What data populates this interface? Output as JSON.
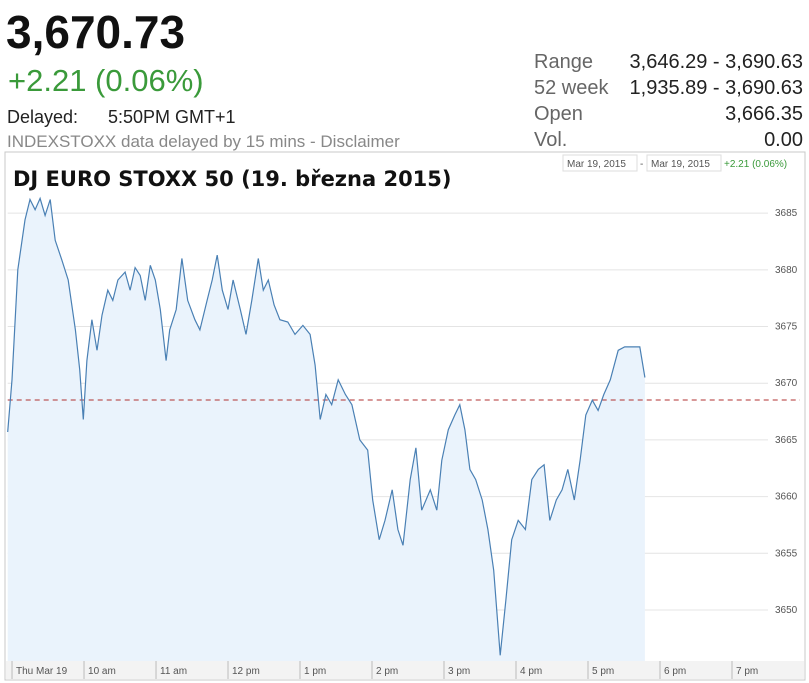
{
  "header": {
    "price": "3,670.73",
    "change": "+2.21 (0.06%)",
    "delayed_label": "Delayed:",
    "delayed_time": "5:50PM GMT+1",
    "note": "INDEXSTOXX data delayed by 15 mins - Disclaimer"
  },
  "stats": [
    [
      "Range",
      "3,646.29 - 3,690.63"
    ],
    [
      "52 week",
      "1,935.89 - 3,690.63"
    ],
    [
      "Open",
      "3,666.35"
    ],
    [
      "Vol.",
      "0.00"
    ]
  ],
  "chart_data": {
    "type": "line",
    "title": "DJ EURO STOXX 50 (19. března 2015)",
    "range_start": "Mar 19, 2015",
    "range_separator": "-",
    "range_end": "Mar 19, 2015",
    "range_change": "+2.21 (0.06%)",
    "x": [
      8.94,
      9.0,
      9.08,
      9.18,
      9.25,
      9.32,
      9.39,
      9.46,
      9.53,
      9.6,
      9.69,
      9.78,
      9.88,
      9.94,
      9.99,
      10.04,
      10.11,
      10.18,
      10.25,
      10.33,
      10.4,
      10.47,
      10.57,
      10.64,
      10.71,
      10.78,
      10.85,
      10.92,
      10.99,
      11.06,
      11.14,
      11.19,
      11.28,
      11.36,
      11.44,
      11.54,
      11.61,
      11.71,
      11.78,
      11.85,
      11.92,
      12.0,
      12.07,
      12.17,
      12.25,
      12.33,
      12.42,
      12.49,
      12.56,
      12.64,
      12.72,
      12.83,
      12.93,
      13.04,
      13.14,
      13.21,
      13.28,
      13.36,
      13.44,
      13.53,
      13.63,
      13.72,
      13.83,
      13.94,
      14.01,
      14.1,
      14.18,
      14.28,
      14.36,
      14.43,
      14.53,
      14.61,
      14.69,
      14.81,
      14.9,
      14.97,
      15.06,
      15.15,
      15.22,
      15.29,
      15.36,
      15.44,
      15.53,
      15.61,
      15.69,
      15.78,
      15.86,
      15.94,
      16.03,
      16.13,
      16.22,
      16.31,
      16.39,
      16.47,
      16.56,
      16.64,
      16.72,
      16.81,
      16.89,
      16.97,
      17.06,
      17.14,
      17.22,
      17.31,
      17.42,
      17.51,
      17.72,
      17.79
    ],
    "values": [
      3665.7,
      3670.3,
      3680.0,
      3684.4,
      3686.2,
      3685.3,
      3686.3,
      3684.8,
      3686.2,
      3682.6,
      3680.9,
      3679.1,
      3674.7,
      3671.2,
      3666.8,
      3672.0,
      3675.6,
      3672.9,
      3676.0,
      3678.2,
      3677.3,
      3679.1,
      3679.8,
      3678.2,
      3680.2,
      3679.5,
      3677.3,
      3680.4,
      3679.1,
      3676.5,
      3672.0,
      3674.7,
      3676.5,
      3681.0,
      3677.3,
      3675.6,
      3674.7,
      3677.3,
      3679.1,
      3681.3,
      3678.2,
      3676.5,
      3679.1,
      3676.5,
      3674.3,
      3677.3,
      3681.0,
      3678.2,
      3679.1,
      3676.9,
      3675.6,
      3675.4,
      3674.3,
      3675.1,
      3674.3,
      3671.6,
      3666.8,
      3669.0,
      3668.1,
      3670.3,
      3669.0,
      3668.1,
      3665.0,
      3664.1,
      3659.7,
      3656.2,
      3657.9,
      3660.6,
      3657.1,
      3655.7,
      3661.5,
      3664.3,
      3658.8,
      3660.6,
      3658.8,
      3663.2,
      3665.9,
      3667.2,
      3668.1,
      3665.9,
      3662.4,
      3661.5,
      3659.7,
      3657.1,
      3653.5,
      3646.0,
      3650.9,
      3656.2,
      3657.9,
      3657.1,
      3661.5,
      3662.4,
      3662.8,
      3657.9,
      3659.7,
      3660.6,
      3662.4,
      3659.7,
      3663.2,
      3667.2,
      3668.5,
      3667.6,
      3669.0,
      3670.3,
      3672.9,
      3673.2,
      3673.2,
      3670.5
    ],
    "color": "#4a80b4",
    "fill_color": "#eaf3fc",
    "reference_line": {
      "value": 3668.52,
      "color": "#b03030",
      "style": "dashed"
    },
    "xlim": [
      8.94,
      19.5
    ],
    "ylim": [
      3645.5,
      3689.8
    ],
    "xticks": [
      {
        "value": 9,
        "label": "Thu Mar 19"
      },
      {
        "value": 10,
        "label": "10 am"
      },
      {
        "value": 11,
        "label": "11 am"
      },
      {
        "value": 12,
        "label": "12 pm"
      },
      {
        "value": 13,
        "label": "1 pm"
      },
      {
        "value": 14,
        "label": "2 pm"
      },
      {
        "value": 15,
        "label": "3 pm"
      },
      {
        "value": 16,
        "label": "4 pm"
      },
      {
        "value": 17,
        "label": "5 pm"
      },
      {
        "value": 18,
        "label": "6 pm"
      },
      {
        "value": 19,
        "label": "7 pm"
      }
    ],
    "yticks": [
      3650,
      3655,
      3660,
      3665,
      3670,
      3675,
      3680,
      3685
    ],
    "grid": true
  }
}
